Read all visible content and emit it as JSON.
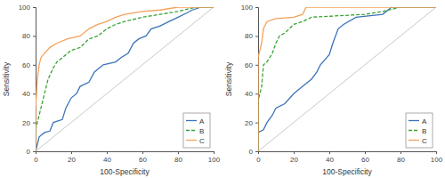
{
  "chart_data": [
    {
      "type": "line",
      "x_label": "100-Specificity",
      "y_label": "Sensitivity",
      "xlim": [
        0,
        100
      ],
      "ylim": [
        0,
        100
      ],
      "xticks": [
        0,
        20,
        40,
        60,
        80,
        100
      ],
      "yticks": [
        0,
        20,
        40,
        60,
        80,
        100
      ],
      "grid": false,
      "legend": "bottom-right",
      "series": [
        {
          "name": "A",
          "color": "#3b73b9",
          "line_style": "solid",
          "x": [
            0,
            2,
            5,
            8,
            10,
            15,
            17,
            20,
            23,
            25,
            30,
            33,
            38,
            45,
            48,
            52,
            55,
            58,
            62,
            65,
            70,
            75,
            80,
            85,
            88,
            93,
            100
          ],
          "values": [
            0,
            10,
            13,
            14,
            20,
            22,
            30,
            37,
            40,
            45,
            48,
            55,
            60,
            62,
            65,
            68,
            75,
            78,
            80,
            85,
            87,
            90,
            93,
            96,
            98,
            100,
            100
          ]
        },
        {
          "name": "B",
          "color": "#3aa335",
          "line_style": "dashed",
          "x": [
            0,
            0,
            2,
            3,
            5,
            7,
            10,
            12,
            15,
            20,
            25,
            30,
            35,
            40,
            45,
            50,
            60,
            70,
            80,
            90,
            100
          ],
          "values": [
            0,
            15,
            25,
            30,
            40,
            50,
            58,
            62,
            65,
            70,
            72,
            78,
            80,
            85,
            88,
            90,
            93,
            95,
            97,
            100,
            100
          ]
        },
        {
          "name": "C",
          "color": "#f5a15a",
          "line_style": "solid",
          "x": [
            0,
            0,
            1,
            2,
            3,
            5,
            8,
            12,
            18,
            25,
            30,
            35,
            40,
            45,
            50,
            60,
            70,
            80,
            100
          ],
          "values": [
            0,
            30,
            50,
            60,
            65,
            68,
            72,
            75,
            78,
            80,
            85,
            88,
            90,
            93,
            95,
            97,
            98,
            100,
            100
          ]
        }
      ]
    },
    {
      "type": "line",
      "x_label": "100-Specificity",
      "y_label": "Sensitivity",
      "xlim": [
        0,
        100
      ],
      "ylim": [
        0,
        100
      ],
      "xticks": [
        0,
        20,
        40,
        60,
        80,
        100
      ],
      "yticks": [
        0,
        20,
        40,
        60,
        80,
        100
      ],
      "grid": false,
      "legend": "bottom-right",
      "series": [
        {
          "name": "A",
          "color": "#3b73b9",
          "line_style": "solid",
          "x": [
            0,
            0,
            3,
            5,
            8,
            10,
            15,
            20,
            25,
            30,
            33,
            35,
            40,
            42,
            45,
            48,
            55,
            70,
            75,
            100
          ],
          "values": [
            0,
            13,
            15,
            20,
            25,
            30,
            33,
            40,
            45,
            50,
            55,
            60,
            67,
            75,
            85,
            88,
            93,
            95,
            100,
            100
          ]
        },
        {
          "name": "B",
          "color": "#3aa335",
          "line_style": "dashed",
          "x": [
            0,
            0,
            2,
            3,
            5,
            8,
            10,
            12,
            15,
            20,
            25,
            30,
            60,
            70,
            80,
            100
          ],
          "values": [
            0,
            35,
            45,
            60,
            62,
            68,
            75,
            80,
            82,
            88,
            90,
            93,
            95,
            97,
            100,
            100
          ]
        },
        {
          "name": "C",
          "color": "#f5a15a",
          "line_style": "solid",
          "x": [
            0,
            0,
            2,
            3,
            5,
            10,
            20,
            25,
            27,
            100
          ],
          "values": [
            0,
            65,
            75,
            85,
            90,
            92,
            93,
            95,
            100,
            100
          ]
        }
      ]
    }
  ]
}
